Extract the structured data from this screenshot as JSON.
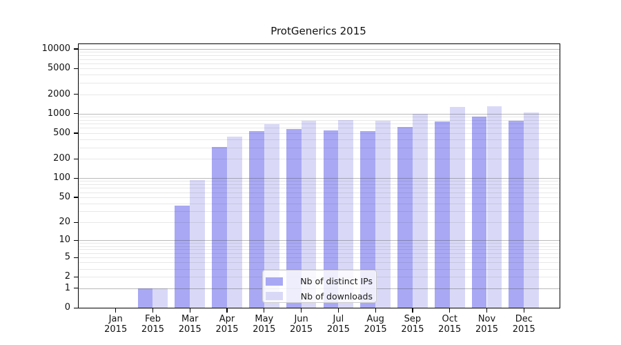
{
  "chart_data": {
    "type": "bar",
    "title": "ProtGenerics 2015",
    "xlabel": "",
    "ylabel": "",
    "y_scale": "log10(1+x)",
    "ylim": [
      0,
      11800
    ],
    "grid": "horizontal major (decades) + minor (2-9 multiples)",
    "year": "2015",
    "categories": [
      "Jan",
      "Feb",
      "Mar",
      "Apr",
      "May",
      "Jun",
      "Jul",
      "Aug",
      "Sep",
      "Oct",
      "Nov",
      "Dec"
    ],
    "y_ticks": [
      10000,
      5000,
      2000,
      1000,
      500,
      200,
      100,
      50,
      20,
      10,
      5,
      2,
      1,
      0
    ],
    "series": [
      {
        "name": "Nb of distinct IPs",
        "color": "#a8a8f4",
        "values": [
          0,
          1,
          37,
          308,
          535,
          578,
          548,
          537,
          618,
          758,
          889,
          783
        ]
      },
      {
        "name": "Nb of downloads",
        "color": "#d9d9f7",
        "values": [
          0,
          1,
          93,
          437,
          690,
          772,
          790,
          771,
          995,
          1262,
          1309,
          1038
        ]
      }
    ],
    "legend": {
      "position": "inside lower-center",
      "labels": [
        "Nb of distinct IPs",
        "Nb of downloads"
      ]
    }
  }
}
